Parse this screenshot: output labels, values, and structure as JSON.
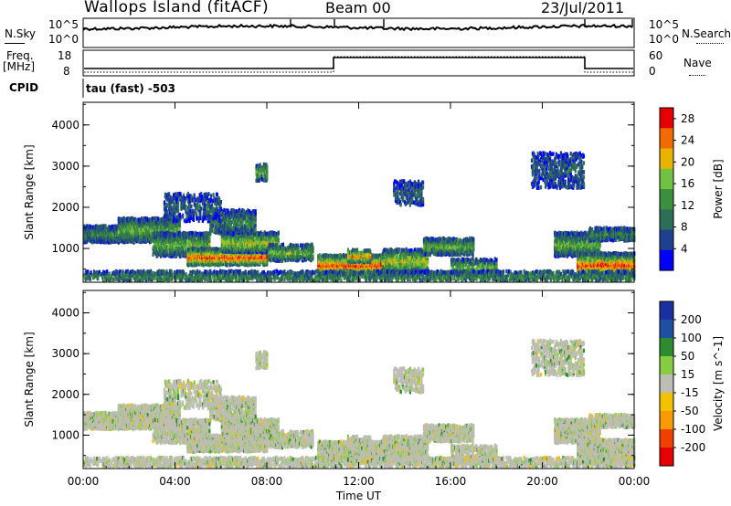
{
  "header": {
    "station": "Wallops Island (fitACF)",
    "beam": "Beam 00",
    "date": "23/Jul/2011"
  },
  "noise_panel": {
    "left_label": "N.Sky",
    "right_label": "N.Search",
    "left_ticks": [
      "10^5",
      "10^0"
    ],
    "right_ticks": [
      "10^5",
      "10^0"
    ]
  },
  "freq_panel": {
    "left_label_1": "Freq.",
    "left_label_2": "[MHz]",
    "right_label": "Nave",
    "left_ticks": [
      "18",
      "8"
    ],
    "right_ticks": [
      "60",
      "0"
    ]
  },
  "cpid_panel": {
    "label": "CPID",
    "program": "tau (fast) -503"
  },
  "colors": {
    "power_scale": [
      "#0000ff",
      "#1f3f8f",
      "#2e6e57",
      "#3c8f3c",
      "#71c142",
      "#e8b400",
      "#f26b00",
      "#e40000"
    ],
    "velocity_scale": [
      "#e40000",
      "#f04000",
      "#f89a00",
      "#f2c200",
      "#bdbdb4",
      "#88cc44",
      "#2e8b2e",
      "#1f4fa0",
      "#1a2fa0"
    ]
  },
  "chart_data": [
    {
      "type": "heatmap",
      "title": "",
      "xlabel": "",
      "ylabel": "Slant Range [km]",
      "x_ticks": [
        "00:00",
        "04:00",
        "08:00",
        "12:00",
        "16:00",
        "20:00",
        "00:00"
      ],
      "y_ticks": [
        "1000",
        "2000",
        "3000",
        "4000"
      ],
      "xlim_hours": [
        0,
        24
      ],
      "ylim_km": [
        180,
        4550
      ],
      "colorbar": {
        "label": "Power [dB]",
        "ticks": [
          "4",
          "8",
          "12",
          "16",
          "20",
          "24",
          "28"
        ],
        "range": [
          0,
          30
        ]
      },
      "grid": false
    },
    {
      "type": "heatmap",
      "title": "",
      "xlabel": "Time UT",
      "ylabel": "Slant Range [km]",
      "x_ticks": [
        "00:00",
        "04:00",
        "08:00",
        "12:00",
        "16:00",
        "20:00",
        "00:00"
      ],
      "y_ticks": [
        "1000",
        "2000",
        "3000",
        "4000"
      ],
      "xlim_hours": [
        0,
        24
      ],
      "ylim_km": [
        180,
        4550
      ],
      "colorbar": {
        "label": "Velocity [m s^-1]",
        "ticks": [
          "200",
          "100",
          "50",
          "15",
          "-15",
          "-50",
          "-100",
          "-200"
        ]
      },
      "grid": false
    }
  ]
}
